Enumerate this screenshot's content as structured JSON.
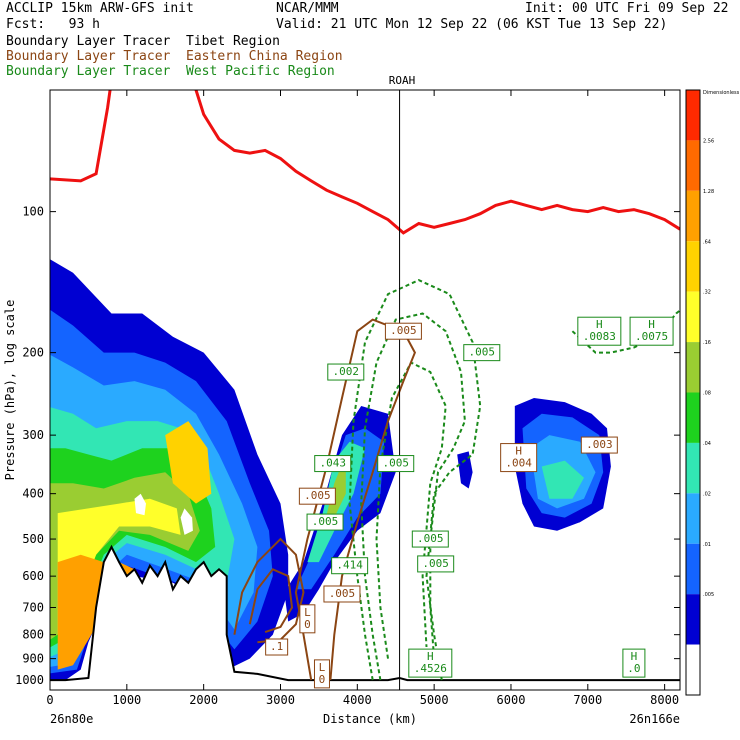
{
  "header": {
    "model": "ACCLIP 15km ARW-GFS init",
    "org": "NCAR/MMM",
    "init": "Init: 00 UTC Fri 09 Sep 22",
    "fcst": "Fcst:   93 h",
    "valid": "Valid: 21 UTC Mon 12 Sep 22 (06 KST Tue 13 Sep 22)"
  },
  "tracers": [
    {
      "label": "Boundary Layer Tracer  Tibet Region",
      "color": "#000000"
    },
    {
      "label": "Boundary Layer Tracer  Eastern China Region",
      "color": "#8B4513"
    },
    {
      "label": "Boundary Layer Tracer  West Pacific Region",
      "color": "#1a8a1a"
    }
  ],
  "chart_data": {
    "type": "heatmap",
    "xlabel": "Distance (km)",
    "ylabel": "Pressure (hPa), log scale",
    "x_ticks": [
      0,
      1000,
      2000,
      3000,
      4000,
      5000,
      6000,
      7000,
      8000
    ],
    "xlim": [
      0,
      8200
    ],
    "y_ticks": [
      100,
      200,
      300,
      400,
      500,
      600,
      700,
      800,
      900,
      1000
    ],
    "ylim": [
      1050,
      55
    ],
    "y_scale": "log",
    "left_endpoint": "26n80e",
    "right_endpoint": "26n166e",
    "reference_line": {
      "label": "ROAH",
      "x": 4550
    },
    "colorbar_labels": [
      "Dimensionless",
      "2.56",
      "1.28",
      ".64",
      ".32",
      ".16",
      ".08",
      ".04",
      ".02",
      ".01",
      ".005"
    ],
    "colorbar_colors": [
      "#ff2a00",
      "#ff6a00",
      "#ffa000",
      "#ffd200",
      "#ffff2a",
      "#9acd32",
      "#1ed21e",
      "#32e6b4",
      "#2aaaff",
      "#1464ff",
      "#0000d2",
      "#ffffff"
    ],
    "tropopause_color": "#ee1111",
    "terrain_color": "#000000",
    "labels": [
      {
        "text": "H\n.0083",
        "x": 7150,
        "p": 180,
        "color": "#1a8a1a"
      },
      {
        "text": "H\n.0075",
        "x": 7830,
        "p": 180,
        "color": "#1a8a1a"
      },
      {
        "text": ".005",
        "x": 4600,
        "p": 180,
        "color": "#8B4513"
      },
      {
        "text": ".005",
        "x": 5620,
        "p": 200,
        "color": "#1a8a1a"
      },
      {
        "text": ".002",
        "x": 3850,
        "p": 220,
        "color": "#1a8a1a"
      },
      {
        "text": ".043",
        "x": 3680,
        "p": 345,
        "color": "#1a8a1a"
      },
      {
        "text": ".005",
        "x": 4500,
        "p": 345,
        "color": "#1a8a1a"
      },
      {
        "text": "H\n.004",
        "x": 6100,
        "p": 335,
        "color": "#8B4513"
      },
      {
        "text": ".003",
        "x": 7150,
        "p": 315,
        "color": "#8B4513"
      },
      {
        "text": ".005",
        "x": 3480,
        "p": 405,
        "color": "#8B4513"
      },
      {
        "text": ".005",
        "x": 3580,
        "p": 460,
        "color": "#1a8a1a"
      },
      {
        "text": ".005",
        "x": 4950,
        "p": 500,
        "color": "#1a8a1a"
      },
      {
        "text": ".005",
        "x": 5020,
        "p": 565,
        "color": "#1a8a1a"
      },
      {
        "text": ".414",
        "x": 3900,
        "p": 570,
        "color": "#1a8a1a"
      },
      {
        "text": ".005",
        "x": 3800,
        "p": 655,
        "color": "#8B4513"
      },
      {
        "text": "L\n0",
        "x": 3350,
        "p": 740,
        "color": "#8B4513"
      },
      {
        "text": ".1",
        "x": 2950,
        "p": 850,
        "color": "#8B4513"
      },
      {
        "text": "L\n0",
        "x": 3540,
        "p": 970,
        "color": "#8B4513"
      },
      {
        "text": "H\n.4526",
        "x": 4950,
        "p": 920,
        "color": "#1a8a1a"
      },
      {
        "text": "H\n.0",
        "x": 7600,
        "p": 920,
        "color": "#1a8a1a"
      }
    ]
  }
}
